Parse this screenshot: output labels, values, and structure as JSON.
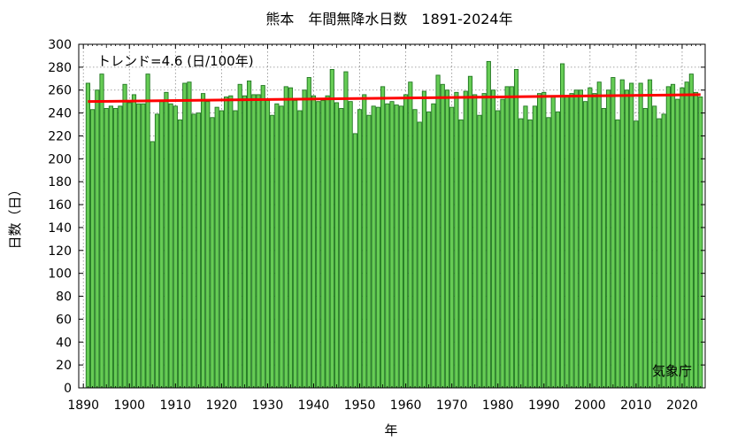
{
  "chart_data": {
    "type": "bar",
    "title": "熊本　年間無降水日数　1891-2024年",
    "xlabel": "年",
    "ylabel": "日数（日）",
    "trend_label": "トレンド=4.6 (日/100年)",
    "source": "気象庁",
    "xlim": [
      1889,
      2025
    ],
    "ylim": [
      0,
      300
    ],
    "xticks": [
      1890,
      1900,
      1910,
      1920,
      1930,
      1940,
      1950,
      1960,
      1970,
      1980,
      1990,
      2000,
      2010,
      2020
    ],
    "yticks": [
      0,
      20,
      40,
      60,
      80,
      100,
      120,
      140,
      160,
      180,
      200,
      220,
      240,
      260,
      280,
      300
    ],
    "grid": true,
    "bar_color": "#66cc55",
    "bar_edge": "#227722",
    "trend_color": "#ff0000",
    "trend": {
      "x": [
        1891,
        2024
      ],
      "y": [
        250,
        256
      ]
    },
    "years_start": 1891,
    "years_end": 2024,
    "values": [
      266,
      243,
      260,
      274,
      244,
      246,
      244,
      246,
      265,
      249,
      256,
      248,
      248,
      274,
      215,
      239,
      251,
      258,
      248,
      246,
      234,
      266,
      267,
      239,
      240,
      257,
      250,
      236,
      245,
      242,
      254,
      255,
      242,
      265,
      255,
      268,
      256,
      256,
      264,
      251,
      238,
      248,
      246,
      263,
      262,
      251,
      242,
      260,
      271,
      255,
      250,
      251,
      255,
      278,
      249,
      244,
      276,
      250,
      222,
      243,
      256,
      238,
      246,
      245,
      263,
      248,
      250,
      247,
      246,
      256,
      267,
      243,
      232,
      259,
      241,
      248,
      273,
      265,
      260,
      245,
      258,
      234,
      259,
      272,
      256,
      238,
      257,
      285,
      260,
      242,
      252,
      263,
      263,
      278,
      235,
      246,
      234,
      246,
      257,
      258,
      236,
      255,
      241,
      283,
      255,
      257,
      260,
      260,
      250,
      262,
      257,
      267,
      244,
      260,
      271,
      234,
      269,
      260,
      266,
      233,
      266,
      244,
      269,
      246,
      235,
      239,
      263,
      265,
      252,
      262,
      267,
      274,
      258,
      254
    ]
  }
}
